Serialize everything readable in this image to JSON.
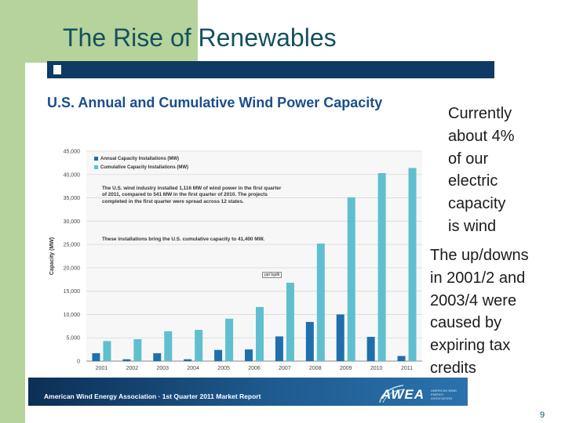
{
  "slide": {
    "title": "The Rise of Renewables",
    "page_number": "9",
    "side_text_1": [
      "Currently",
      "about 4%",
      "of our",
      "electric",
      "capacity",
      "is wind"
    ],
    "side_text_2": [
      "The up/downs",
      "in 2001/2 and",
      "2003/4 were",
      "caused by",
      "expiring tax",
      "credits"
    ]
  },
  "chart_panel": {
    "heading": "U.S. Annual and Cumulative Wind Power Capacity",
    "note_1": "The U.S. wind industry installed 1,116 MW of wind power in the first quarter of 2011, compared to 541 MW in the first quarter of 2010. The projects completed in the first quarter were spread across 12 states.",
    "note_2": "These installations bring the U.S. cumulative capacity to 41,400 MW.",
    "stamp": "ppt bgdb",
    "footer": "American Wind Energy Association · 1st Quarter 2011 Market Report",
    "logo_text": "AWEA",
    "logo_subtext": "AMERICAN WIND ENERGY ASSOCIATION"
  },
  "chart_data": {
    "type": "bar",
    "title": "U.S. Annual and Cumulative Wind Power Capacity",
    "xlabel": "",
    "ylabel": "Capacity (MW)",
    "ylim": [
      0,
      45000
    ],
    "y_ticks": [
      "0",
      "5,000",
      "10,000",
      "15,000",
      "20,000",
      "25,000",
      "30,000",
      "35,000",
      "40,000",
      "45,000"
    ],
    "categories": [
      "2001",
      "2002",
      "2003",
      "2004",
      "2005",
      "2006",
      "2007",
      "2008",
      "2009",
      "2010",
      "2011"
    ],
    "series": [
      {
        "name": "Annual Capacity Installations (MW)",
        "color": "#1f6fad",
        "values": [
          1700,
          400,
          1700,
          400,
          2400,
          2500,
          5300,
          8400,
          10000,
          5200,
          1100
        ]
      },
      {
        "name": "Cumulative Capacity Installations (MW)",
        "color": "#5fbfcf",
        "values": [
          4300,
          4700,
          6400,
          6700,
          9100,
          11600,
          16800,
          25200,
          35100,
          40300,
          41400
        ]
      }
    ],
    "legend_position": "top-left"
  }
}
